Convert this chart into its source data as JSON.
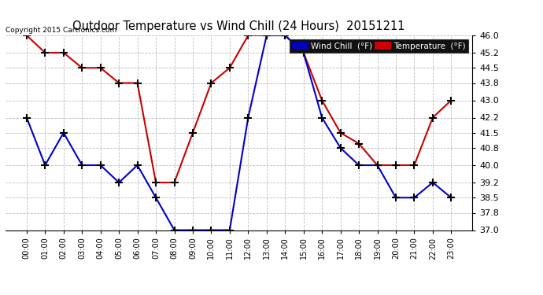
{
  "title": "Outdoor Temperature vs Wind Chill (24 Hours)  20151211",
  "copyright": "Copyright 2015 Cartronics.com",
  "legend_wind_chill": "Wind Chill  (°F)",
  "legend_temperature": "Temperature  (°F)",
  "x_labels": [
    "00:00",
    "01:00",
    "02:00",
    "03:00",
    "04:00",
    "05:00",
    "06:00",
    "07:00",
    "08:00",
    "09:00",
    "10:00",
    "11:00",
    "12:00",
    "13:00",
    "14:00",
    "15:00",
    "16:00",
    "17:00",
    "18:00",
    "19:00",
    "20:00",
    "21:00",
    "22:00",
    "23:00"
  ],
  "temperature": [
    46.0,
    45.2,
    45.2,
    44.5,
    44.5,
    43.8,
    43.8,
    39.2,
    39.2,
    41.5,
    43.8,
    44.5,
    46.0,
    46.0,
    46.0,
    45.2,
    43.0,
    41.5,
    41.0,
    40.0,
    40.0,
    40.0,
    42.2,
    43.0
  ],
  "wind_chill": [
    42.2,
    40.0,
    41.5,
    40.0,
    40.0,
    39.2,
    40.0,
    38.5,
    37.0,
    37.0,
    37.0,
    37.0,
    42.2,
    46.0,
    46.0,
    45.2,
    42.2,
    40.8,
    40.0,
    40.0,
    38.5,
    38.5,
    39.2,
    38.5
  ],
  "ylim": [
    37.0,
    46.0
  ],
  "yticks": [
    37.0,
    37.8,
    38.5,
    39.2,
    40.0,
    40.8,
    41.5,
    42.2,
    43.0,
    43.8,
    44.5,
    45.2,
    46.0
  ],
  "bg_color": "#ffffff",
  "grid_color": "#aaaaaa",
  "temp_color": "#cc0000",
  "wind_color": "#0000cc",
  "title_color": "#000000",
  "legend_wind_bg": "#0000bb",
  "legend_temp_bg": "#cc0000"
}
